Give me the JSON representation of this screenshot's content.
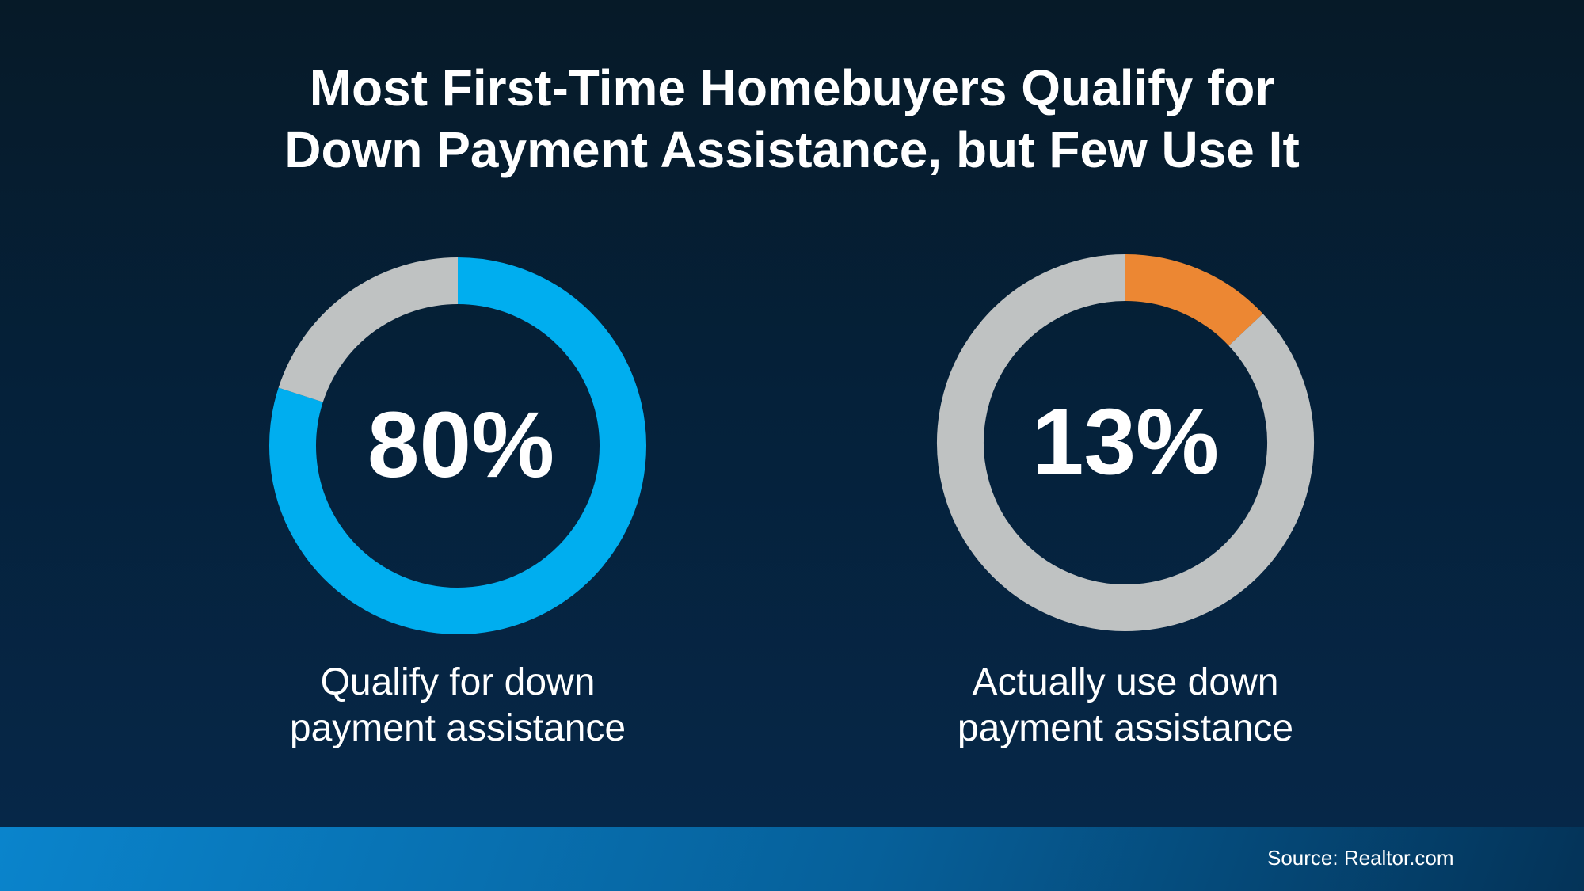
{
  "chart_data": [
    {
      "type": "pie",
      "style": "donut",
      "title": "",
      "value_label": "80%",
      "caption": "Qualify for down payment assistance",
      "slices": [
        {
          "value": 80,
          "color": "#00aeef"
        },
        {
          "value": 20,
          "color": "#bfc2c2"
        }
      ]
    },
    {
      "type": "pie",
      "style": "donut",
      "title": "",
      "value_label": "13%",
      "caption": "Actually use down payment assistance",
      "slices": [
        {
          "value": 13,
          "color": "#ec8733"
        },
        {
          "value": 87,
          "color": "#bfc2c2"
        }
      ]
    }
  ],
  "title": {
    "line1": "Most First-Time Homebuyers Qualify for",
    "line2": "Down Payment Assistance, but Few Use It"
  },
  "charts": [
    {
      "caption_line1": "Qualify for down",
      "caption_line2": "payment assistance"
    },
    {
      "caption_line1": "Actually use down",
      "caption_line2": "payment assistance"
    }
  ],
  "footer": {
    "source": "Source: Realtor.com"
  }
}
